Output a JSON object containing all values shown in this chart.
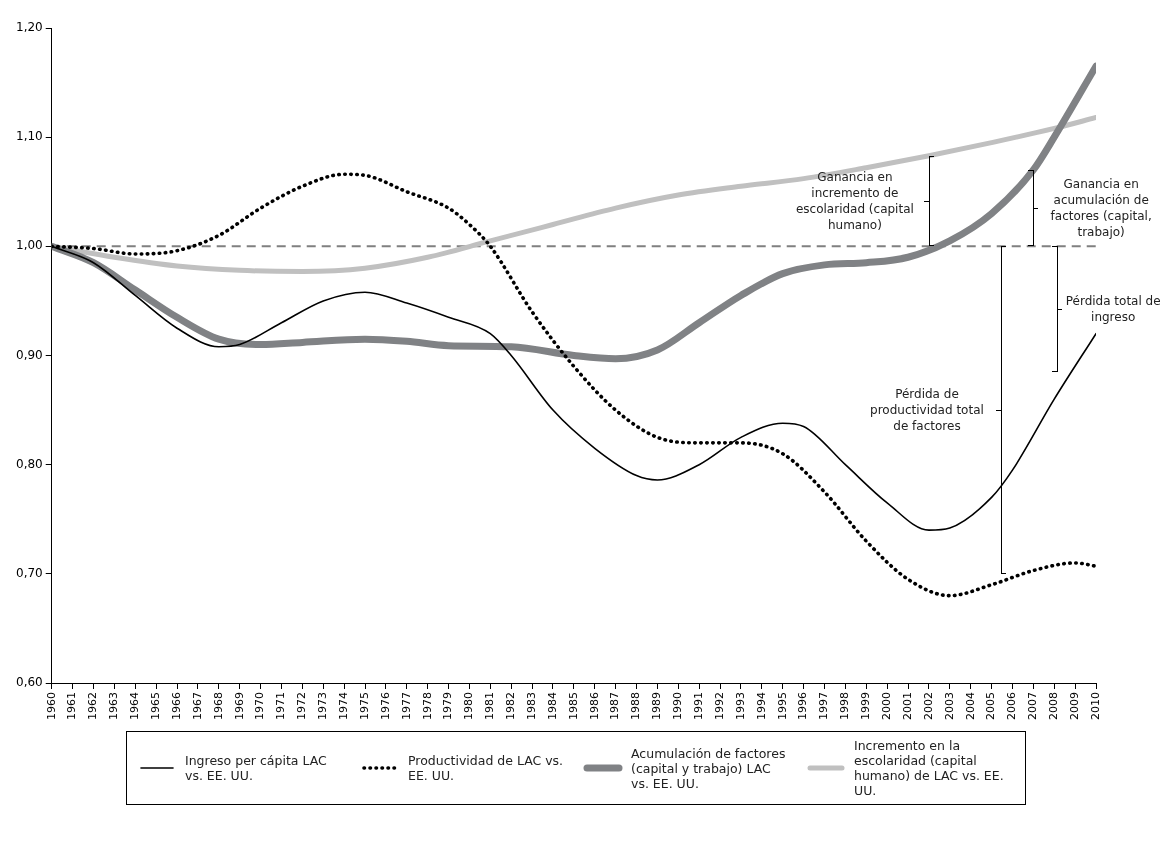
{
  "chart_data": {
    "type": "line",
    "xlim": [
      1960,
      2010
    ],
    "xticks": [
      1960,
      1961,
      1962,
      1963,
      1964,
      1965,
      1966,
      1967,
      1968,
      1969,
      1970,
      1971,
      1972,
      1973,
      1974,
      1975,
      1976,
      1977,
      1978,
      1979,
      1980,
      1981,
      1982,
      1983,
      1984,
      1985,
      1986,
      1987,
      1988,
      1989,
      1990,
      1991,
      1992,
      1993,
      1994,
      1995,
      1996,
      1997,
      1998,
      1999,
      2000,
      2001,
      2002,
      2003,
      2004,
      2005,
      2006,
      2007,
      2008,
      2009,
      2010
    ],
    "ylim": [
      0.6,
      1.2
    ],
    "yticks": [
      {
        "value": 0.6,
        "label": "0,60"
      },
      {
        "value": 0.7,
        "label": "0,70"
      },
      {
        "value": 0.8,
        "label": "0,80"
      },
      {
        "value": 0.9,
        "label": "0,90"
      },
      {
        "value": 1.0,
        "label": "1,00"
      },
      {
        "value": 1.1,
        "label": "1,10"
      },
      {
        "value": 1.2,
        "label": "1,20"
      }
    ],
    "grid": false,
    "legend": "bottom",
    "series": [
      {
        "name": "Ingreso per cápita LAC vs. EE. UU.",
        "color": "#000000",
        "line_style": "solid",
        "x": [
          1960,
          1962,
          1964,
          1966,
          1968,
          1969,
          1971,
          1973,
          1975,
          1977,
          1979,
          1981,
          1982,
          1984,
          1986,
          1988,
          1989,
          1991,
          1993,
          1995,
          1996,
          1998,
          2000,
          2002,
          2003,
          2005,
          2006,
          2008,
          2010
        ],
        "values": [
          1.0,
          0.985,
          0.955,
          0.925,
          0.908,
          0.91,
          0.93,
          0.95,
          0.958,
          0.948,
          0.935,
          0.92,
          0.9,
          0.85,
          0.815,
          0.79,
          0.786,
          0.8,
          0.825,
          0.838,
          0.835,
          0.8,
          0.765,
          0.74,
          0.742,
          0.77,
          0.795,
          0.86,
          0.92
        ]
      },
      {
        "name": "Productividad de LAC vs. EE. UU.",
        "color": "#000000",
        "line_style": "dotted",
        "x": [
          1960,
          1962,
          1964,
          1966,
          1968,
          1970,
          1972,
          1974,
          1975,
          1977,
          1979,
          1980,
          1981,
          1983,
          1985,
          1987,
          1989,
          1991,
          1993,
          1995,
          1997,
          1999,
          2001,
          2003,
          2005,
          2007,
          2009,
          2010
        ],
        "values": [
          1.0,
          0.998,
          0.993,
          0.996,
          1.01,
          1.035,
          1.055,
          1.066,
          1.065,
          1.05,
          1.035,
          1.02,
          1.0,
          0.94,
          0.89,
          0.85,
          0.825,
          0.82,
          0.82,
          0.81,
          0.775,
          0.73,
          0.695,
          0.68,
          0.69,
          0.703,
          0.71,
          0.707
        ]
      },
      {
        "name": "Acumulación de factores (capital y trabajo) LAC vs. EE. UU.",
        "color": "#808285",
        "line_style": "solid",
        "x": [
          1960,
          1962,
          1964,
          1966,
          1968,
          1970,
          1972,
          1975,
          1977,
          1979,
          1982,
          1985,
          1987,
          1989,
          1991,
          1993,
          1995,
          1997,
          1999,
          2001,
          2003,
          2005,
          2007,
          2008,
          2010
        ],
        "values": [
          1.0,
          0.985,
          0.96,
          0.935,
          0.915,
          0.91,
          0.912,
          0.915,
          0.913,
          0.909,
          0.908,
          0.9,
          0.897,
          0.905,
          0.93,
          0.955,
          0.975,
          0.983,
          0.985,
          0.99,
          1.005,
          1.03,
          1.07,
          1.1,
          1.165
        ]
      },
      {
        "name": "Incremento en la escolaridad (capital humano) de LAC vs. EE. UU.",
        "color": "#c0c0c0",
        "line_style": "solid",
        "x": [
          1960,
          1963,
          1966,
          1969,
          1972,
          1975,
          1978,
          1981,
          1984,
          1987,
          1990,
          1993,
          1996,
          1999,
          2002,
          2005,
          2008,
          2010
        ],
        "values": [
          1.0,
          0.99,
          0.982,
          0.978,
          0.977,
          0.98,
          0.99,
          1.005,
          1.02,
          1.035,
          1.047,
          1.055,
          1.062,
          1.072,
          1.083,
          1.095,
          1.108,
          1.118
        ]
      }
    ],
    "ref_lines": [
      {
        "axis": "y",
        "value": 1.0,
        "color": "#808080",
        "line_style": "dashed"
      }
    ],
    "annotations": [
      {
        "text": "Ganancia en incremento de escolaridad (capital humano)",
        "x": 2002,
        "y": 1.083
      },
      {
        "text": "Ganancia en acumulación de factores (capital, trabajo)",
        "x": 2007,
        "y": 1.07
      },
      "Pérdida total de ingreso",
      "Pérdida de productividad total de factores"
    ]
  }
}
